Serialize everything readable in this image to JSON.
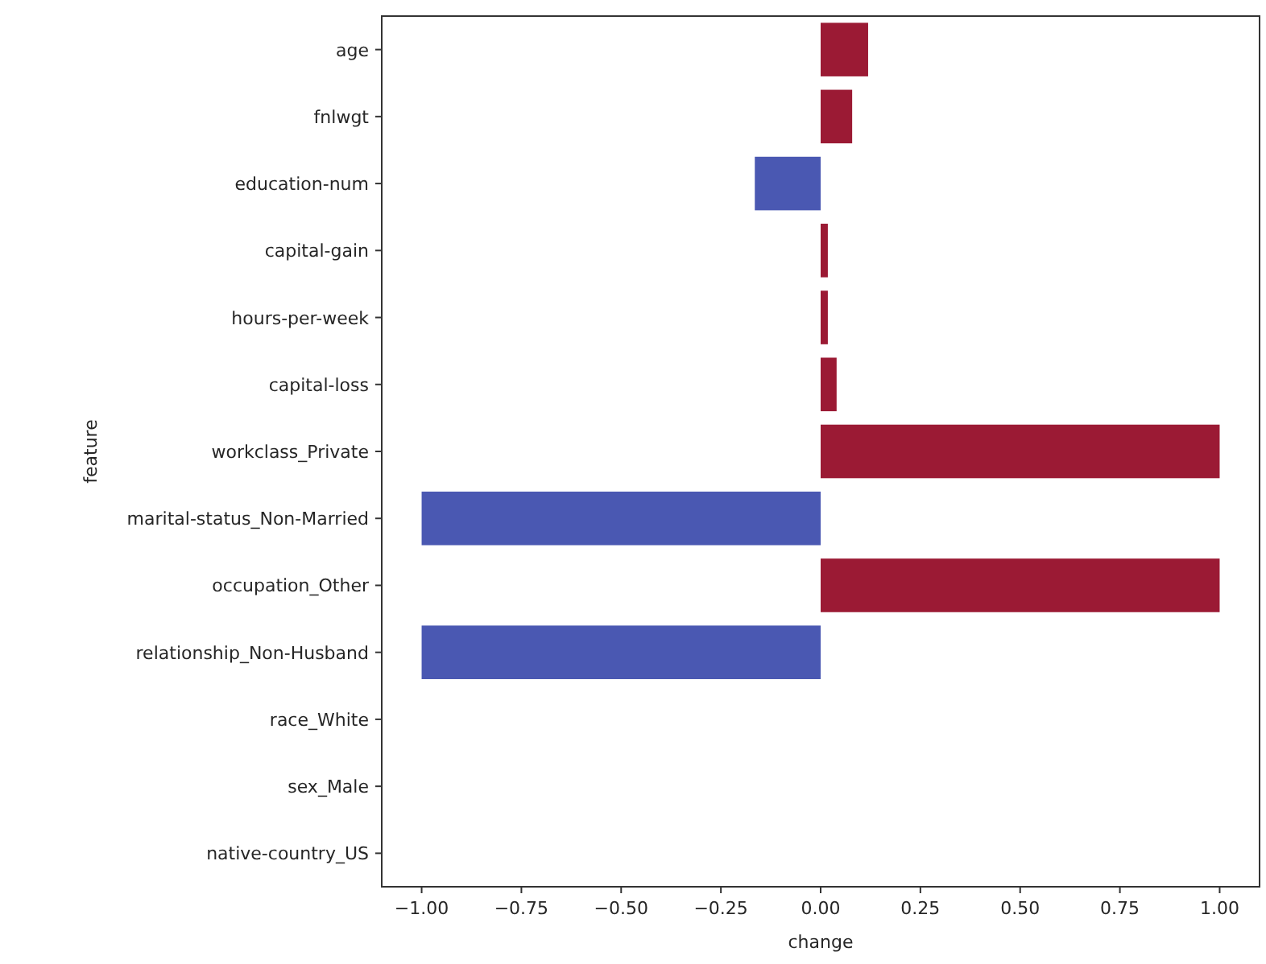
{
  "chart_data": {
    "type": "bar",
    "orientation": "horizontal",
    "xlabel": "change",
    "ylabel": "feature",
    "categories": [
      "age",
      "fnlwgt",
      "education-num",
      "capital-gain",
      "hours-per-week",
      "capital-loss",
      "workclass_Private",
      "marital-status_Non-Married",
      "occupation_Other",
      "relationship_Non-Husband",
      "race_White",
      "sex_Male",
      "native-country_US"
    ],
    "values": [
      0.119,
      0.079,
      -0.165,
      0.018,
      0.018,
      0.04,
      1,
      -1,
      1,
      -1,
      0,
      0,
      0
    ],
    "colors": [
      "#9b1a34",
      "#9b1a34",
      "#4a58b2",
      "#9b1a34",
      "#9b1a34",
      "#9b1a34",
      "#9b1a34",
      "#4a58b2",
      "#9b1a34",
      "#4a58b2",
      "#dddcdc",
      "#dddcdc",
      "#dddcdc"
    ],
    "xlim": [
      -1.1,
      1.1
    ],
    "xticks": [
      {
        "value": -1,
        "label": "−1.00"
      },
      {
        "value": -0.75,
        "label": "−0.75"
      },
      {
        "value": -0.5,
        "label": "−0.50"
      },
      {
        "value": -0.25,
        "label": "−0.25"
      },
      {
        "value": 0,
        "label": "0.00"
      },
      {
        "value": 0.25,
        "label": "0.25"
      },
      {
        "value": 0.5,
        "label": "0.50"
      },
      {
        "value": 0.75,
        "label": "0.75"
      },
      {
        "value": 1,
        "label": "1.00"
      }
    ],
    "grid": false
  }
}
